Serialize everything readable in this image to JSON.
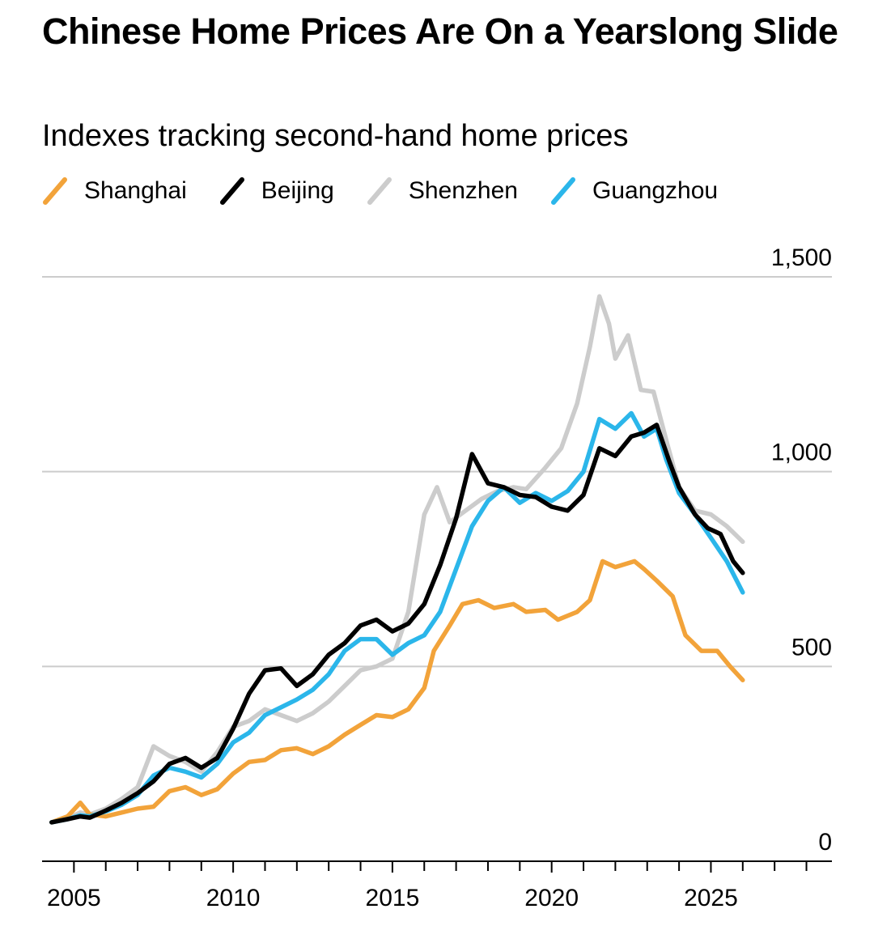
{
  "header": {
    "title": "Chinese Home Prices Are On a Yearslong Slide",
    "subtitle": "Indexes tracking second-hand home prices"
  },
  "chart_data": {
    "type": "line",
    "title": "Chinese Home Prices Are On a Yearslong Slide",
    "subtitle": "Indexes tracking second-hand home prices",
    "xlabel": "",
    "ylabel": "",
    "xlim": [
      2004,
      2028.8
    ],
    "ylim": [
      0,
      1500
    ],
    "x_ticks": [
      2005,
      2010,
      2015,
      2020,
      2025
    ],
    "y_ticks": [
      0,
      500,
      1000,
      1500
    ],
    "y_tick_labels": [
      "0",
      "500",
      "1,000",
      "1,500"
    ],
    "x_tick_labels": [
      "2005",
      "2010",
      "2015",
      "2020",
      "2025"
    ],
    "grid": "horizontal",
    "legend_position": "top",
    "series": [
      {
        "name": "Shanghai",
        "color": "#f2a33a",
        "points": [
          [
            2004.3,
            100
          ],
          [
            2004.8,
            115
          ],
          [
            2005.2,
            150
          ],
          [
            2005.5,
            120
          ],
          [
            2006.0,
            115
          ],
          [
            2006.5,
            125
          ],
          [
            2007.0,
            135
          ],
          [
            2007.5,
            140
          ],
          [
            2008.0,
            180
          ],
          [
            2008.5,
            190
          ],
          [
            2009.0,
            170
          ],
          [
            2009.5,
            185
          ],
          [
            2010.0,
            225
          ],
          [
            2010.5,
            255
          ],
          [
            2011.0,
            260
          ],
          [
            2011.5,
            285
          ],
          [
            2012.0,
            290
          ],
          [
            2012.5,
            275
          ],
          [
            2013.0,
            295
          ],
          [
            2013.5,
            325
          ],
          [
            2014.0,
            350
          ],
          [
            2014.5,
            375
          ],
          [
            2015.0,
            370
          ],
          [
            2015.5,
            390
          ],
          [
            2016.0,
            445
          ],
          [
            2016.3,
            540
          ],
          [
            2016.8,
            605
          ],
          [
            2017.2,
            660
          ],
          [
            2017.7,
            670
          ],
          [
            2018.2,
            650
          ],
          [
            2018.8,
            660
          ],
          [
            2019.2,
            640
          ],
          [
            2019.8,
            645
          ],
          [
            2020.2,
            620
          ],
          [
            2020.8,
            640
          ],
          [
            2021.2,
            670
          ],
          [
            2021.6,
            770
          ],
          [
            2022.0,
            755
          ],
          [
            2022.6,
            770
          ],
          [
            2022.9,
            750
          ],
          [
            2023.3,
            720
          ],
          [
            2023.8,
            680
          ],
          [
            2024.2,
            580
          ],
          [
            2024.7,
            540
          ],
          [
            2025.2,
            540
          ],
          [
            2025.6,
            500
          ],
          [
            2026.0,
            465
          ]
        ]
      },
      {
        "name": "Beijing",
        "color": "#000000",
        "points": [
          [
            2004.3,
            100
          ],
          [
            2004.8,
            108
          ],
          [
            2005.2,
            115
          ],
          [
            2005.5,
            112
          ],
          [
            2006.0,
            130
          ],
          [
            2006.5,
            150
          ],
          [
            2007.0,
            175
          ],
          [
            2007.5,
            205
          ],
          [
            2008.0,
            250
          ],
          [
            2008.5,
            265
          ],
          [
            2009.0,
            240
          ],
          [
            2009.5,
            265
          ],
          [
            2010.0,
            340
          ],
          [
            2010.5,
            430
          ],
          [
            2011.0,
            490
          ],
          [
            2011.5,
            495
          ],
          [
            2012.0,
            450
          ],
          [
            2012.5,
            480
          ],
          [
            2013.0,
            530
          ],
          [
            2013.5,
            560
          ],
          [
            2014.0,
            605
          ],
          [
            2014.5,
            620
          ],
          [
            2015.0,
            590
          ],
          [
            2015.5,
            610
          ],
          [
            2016.0,
            660
          ],
          [
            2016.5,
            760
          ],
          [
            2017.0,
            880
          ],
          [
            2017.5,
            1045
          ],
          [
            2018.0,
            970
          ],
          [
            2018.5,
            960
          ],
          [
            2019.0,
            940
          ],
          [
            2019.5,
            935
          ],
          [
            2020.0,
            910
          ],
          [
            2020.5,
            900
          ],
          [
            2021.0,
            940
          ],
          [
            2021.5,
            1060
          ],
          [
            2022.0,
            1040
          ],
          [
            2022.5,
            1090
          ],
          [
            2022.9,
            1100
          ],
          [
            2023.3,
            1120
          ],
          [
            2023.7,
            1025
          ],
          [
            2024.0,
            960
          ],
          [
            2024.5,
            890
          ],
          [
            2024.9,
            855
          ],
          [
            2025.3,
            840
          ],
          [
            2025.7,
            770
          ],
          [
            2026.0,
            740
          ]
        ]
      },
      {
        "name": "Shenzhen",
        "color": "#cccccc",
        "points": [
          [
            2004.3,
            100
          ],
          [
            2004.8,
            110
          ],
          [
            2005.2,
            125
          ],
          [
            2005.5,
            120
          ],
          [
            2006.0,
            135
          ],
          [
            2006.5,
            160
          ],
          [
            2007.0,
            190
          ],
          [
            2007.5,
            295
          ],
          [
            2008.0,
            270
          ],
          [
            2008.5,
            255
          ],
          [
            2009.0,
            230
          ],
          [
            2009.5,
            280
          ],
          [
            2010.0,
            345
          ],
          [
            2010.5,
            360
          ],
          [
            2011.0,
            390
          ],
          [
            2011.5,
            375
          ],
          [
            2012.0,
            360
          ],
          [
            2012.5,
            380
          ],
          [
            2013.0,
            410
          ],
          [
            2013.5,
            450
          ],
          [
            2014.0,
            490
          ],
          [
            2014.5,
            500
          ],
          [
            2015.0,
            520
          ],
          [
            2015.5,
            640
          ],
          [
            2016.0,
            890
          ],
          [
            2016.4,
            960
          ],
          [
            2016.8,
            870
          ],
          [
            2017.3,
            900
          ],
          [
            2017.8,
            930
          ],
          [
            2018.3,
            950
          ],
          [
            2018.8,
            960
          ],
          [
            2019.2,
            955
          ],
          [
            2019.8,
            1010
          ],
          [
            2020.3,
            1060
          ],
          [
            2020.8,
            1175
          ],
          [
            2021.2,
            1320
          ],
          [
            2021.5,
            1450
          ],
          [
            2021.8,
            1380
          ],
          [
            2022.0,
            1290
          ],
          [
            2022.4,
            1350
          ],
          [
            2022.8,
            1210
          ],
          [
            2023.2,
            1205
          ],
          [
            2023.6,
            1080
          ],
          [
            2024.0,
            960
          ],
          [
            2024.5,
            900
          ],
          [
            2025.0,
            890
          ],
          [
            2025.5,
            860
          ],
          [
            2026.0,
            820
          ]
        ]
      },
      {
        "name": "Guangzhou",
        "color": "#2bb6ea",
        "points": [
          [
            2004.3,
            100
          ],
          [
            2004.8,
            108
          ],
          [
            2005.2,
            118
          ],
          [
            2005.5,
            115
          ],
          [
            2006.0,
            128
          ],
          [
            2006.5,
            145
          ],
          [
            2007.0,
            170
          ],
          [
            2007.5,
            220
          ],
          [
            2008.0,
            240
          ],
          [
            2008.5,
            230
          ],
          [
            2009.0,
            215
          ],
          [
            2009.5,
            250
          ],
          [
            2010.0,
            305
          ],
          [
            2010.5,
            330
          ],
          [
            2011.0,
            375
          ],
          [
            2011.5,
            395
          ],
          [
            2012.0,
            415
          ],
          [
            2012.5,
            440
          ],
          [
            2013.0,
            480
          ],
          [
            2013.5,
            540
          ],
          [
            2014.0,
            570
          ],
          [
            2014.5,
            570
          ],
          [
            2015.0,
            530
          ],
          [
            2015.5,
            560
          ],
          [
            2016.0,
            580
          ],
          [
            2016.5,
            640
          ],
          [
            2017.0,
            750
          ],
          [
            2017.5,
            860
          ],
          [
            2018.0,
            925
          ],
          [
            2018.5,
            960
          ],
          [
            2019.0,
            920
          ],
          [
            2019.5,
            945
          ],
          [
            2020.0,
            925
          ],
          [
            2020.5,
            950
          ],
          [
            2021.0,
            1000
          ],
          [
            2021.5,
            1135
          ],
          [
            2022.0,
            1110
          ],
          [
            2022.5,
            1150
          ],
          [
            2022.9,
            1090
          ],
          [
            2023.3,
            1110
          ],
          [
            2023.6,
            1030
          ],
          [
            2024.0,
            945
          ],
          [
            2024.5,
            890
          ],
          [
            2025.0,
            830
          ],
          [
            2025.5,
            770
          ],
          [
            2026.0,
            690
          ]
        ]
      }
    ]
  }
}
